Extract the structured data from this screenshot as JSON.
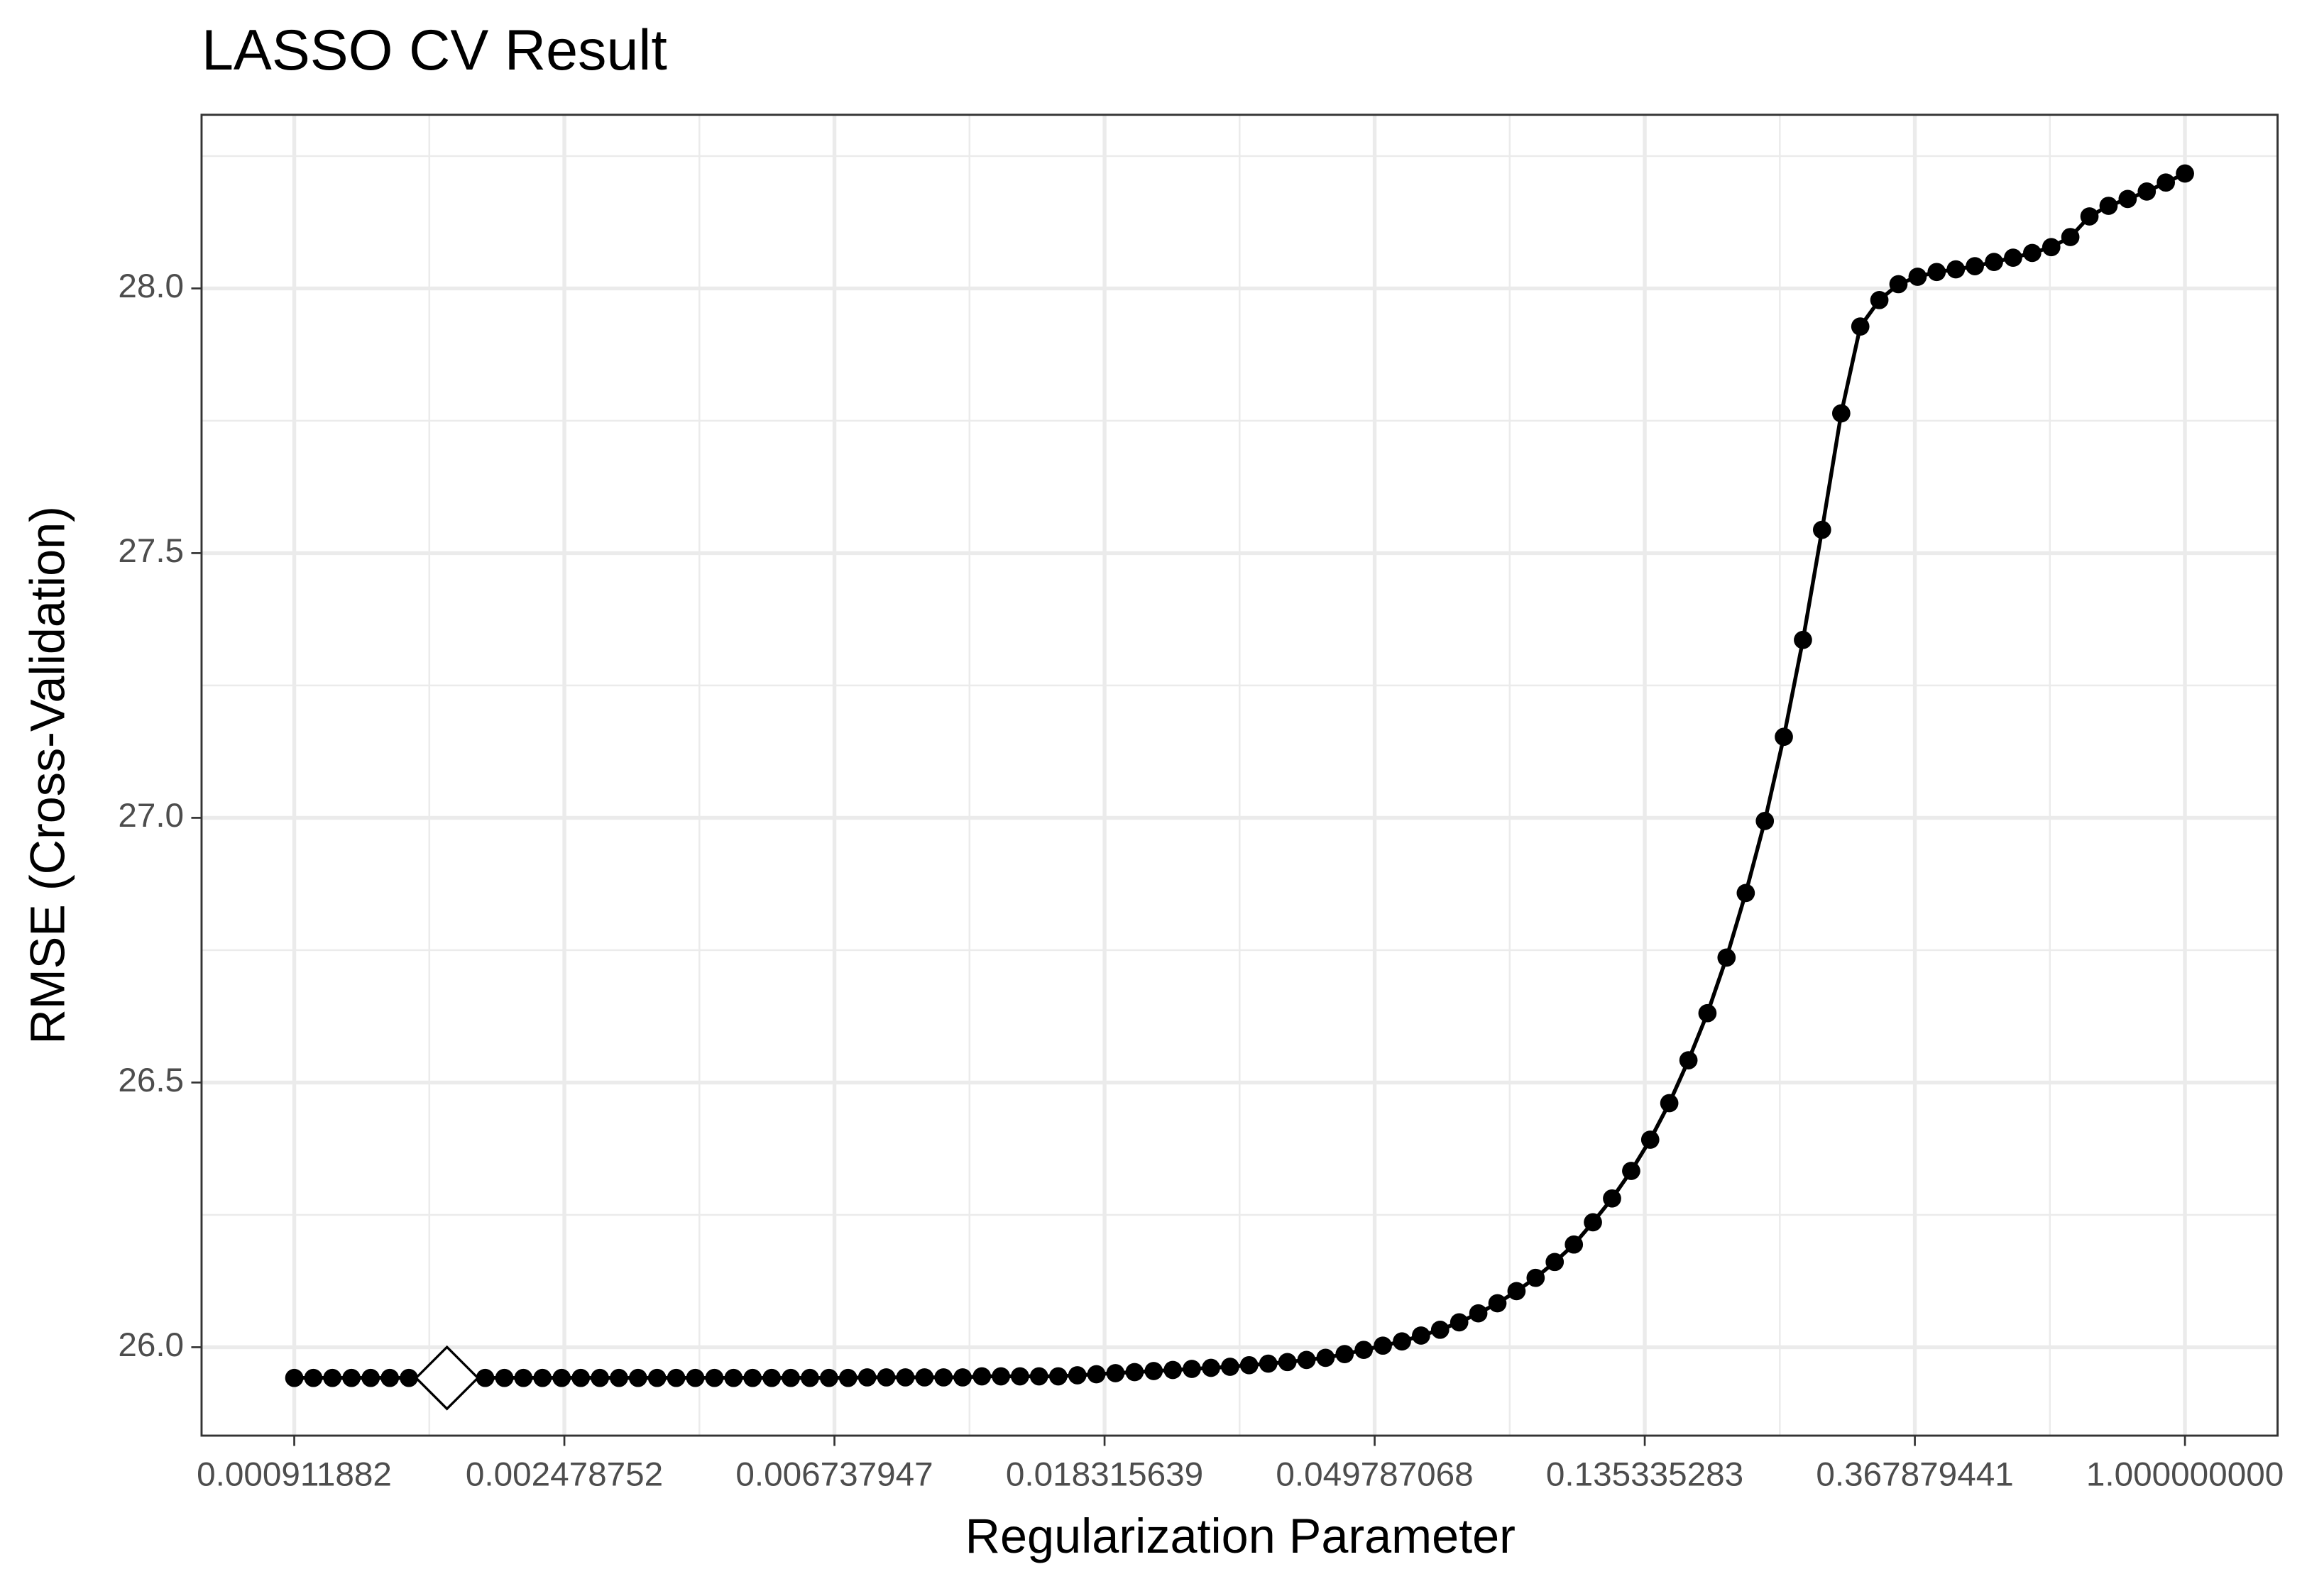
{
  "chart_data": {
    "type": "line",
    "title": "LASSO CV Result",
    "xlabel": "Regularization Parameter",
    "ylabel": "RMSE (Cross-Validation)",
    "xscale": "log",
    "grid": true,
    "color": "#000000",
    "x": [
      0.0009119,
      0.0009787,
      0.00105,
      0.001127,
      0.00121,
      0.001299,
      0.001394,
      0.001496,
      0.001605,
      0.001723,
      0.001849,
      0.001985,
      0.00213,
      0.002286,
      0.002454,
      0.002634,
      0.002827,
      0.003034,
      0.003256,
      0.003494,
      0.00375,
      0.004025,
      0.00432,
      0.004637,
      0.004976,
      0.005341,
      0.005732,
      0.006152,
      0.006603,
      0.007087,
      0.007606,
      0.008163,
      0.008761,
      0.009403,
      0.01009,
      0.01083,
      0.01163,
      0.01248,
      0.01339,
      0.01437,
      0.01543,
      0.01656,
      0.01777,
      0.01907,
      0.02047,
      0.02197,
      0.02358,
      0.0253,
      0.02716,
      0.02915,
      0.03128,
      0.03358,
      0.03604,
      0.03868,
      0.04151,
      0.04455,
      0.04781,
      0.05132,
      0.05508,
      0.05911,
      0.06344,
      0.06809,
      0.07308,
      0.07844,
      0.08418,
      0.09035,
      0.09697,
      0.1041,
      0.1117,
      0.1199,
      0.1287,
      0.1381,
      0.1482,
      0.1591,
      0.1707,
      0.1832,
      0.1967,
      0.2111,
      0.2265,
      0.2431,
      0.2609,
      0.2801,
      0.3006,
      0.3226,
      0.3462,
      0.3716,
      0.3988,
      0.4281,
      0.4594,
      0.4931,
      0.5292,
      0.568,
      0.6096,
      0.6542,
      0.7022,
      0.7536,
      0.8088,
      0.8681,
      0.9317,
      1.0
    ],
    "values": [
      25.942,
      25.942,
      25.942,
      25.942,
      25.942,
      25.942,
      25.942,
      25.942,
      25.942,
      25.942,
      25.942,
      25.942,
      25.942,
      25.942,
      25.942,
      25.942,
      25.942,
      25.942,
      25.942,
      25.942,
      25.942,
      25.942,
      25.942,
      25.942,
      25.942,
      25.942,
      25.942,
      25.942,
      25.942,
      25.942,
      25.943,
      25.943,
      25.943,
      25.943,
      25.943,
      25.943,
      25.945,
      25.945,
      25.945,
      25.945,
      25.945,
      25.947,
      25.949,
      25.951,
      25.953,
      25.955,
      25.957,
      25.959,
      25.961,
      25.963,
      25.966,
      25.969,
      25.972,
      25.976,
      25.98,
      25.987,
      25.995,
      26.003,
      26.011,
      26.022,
      26.033,
      26.047,
      26.064,
      26.083,
      26.106,
      26.131,
      26.161,
      26.194,
      26.236,
      26.281,
      26.333,
      26.392,
      26.461,
      26.542,
      26.631,
      26.736,
      26.858,
      26.994,
      27.153,
      27.336,
      27.544,
      27.764,
      27.928,
      27.978,
      28.008,
      28.022,
      28.031,
      28.036,
      28.042,
      28.05,
      28.058,
      28.067,
      28.078,
      28.097,
      28.136,
      28.156,
      28.169,
      28.183,
      28.2,
      28.217
    ],
    "highlight": {
      "x": 0.001605,
      "y": 25.942
    },
    "xlim": [
      0.000647,
      1.409
    ],
    "xticks": [
      0.000911882,
      0.002478752,
      0.006737947,
      0.018315639,
      0.049787068,
      0.135335283,
      0.367879441,
      {
        "value": 1,
        "label": "1.000000000"
      }
    ],
    "ylim": [
      25.833,
      28.328
    ],
    "yticks": [
      {
        "value": 26,
        "label": "26.0"
      },
      {
        "value": 26.5,
        "label": "26.5"
      },
      {
        "value": 27,
        "label": "27.0"
      },
      {
        "value": 27.5,
        "label": "27.5"
      },
      {
        "value": 28,
        "label": "28.0"
      }
    ]
  }
}
